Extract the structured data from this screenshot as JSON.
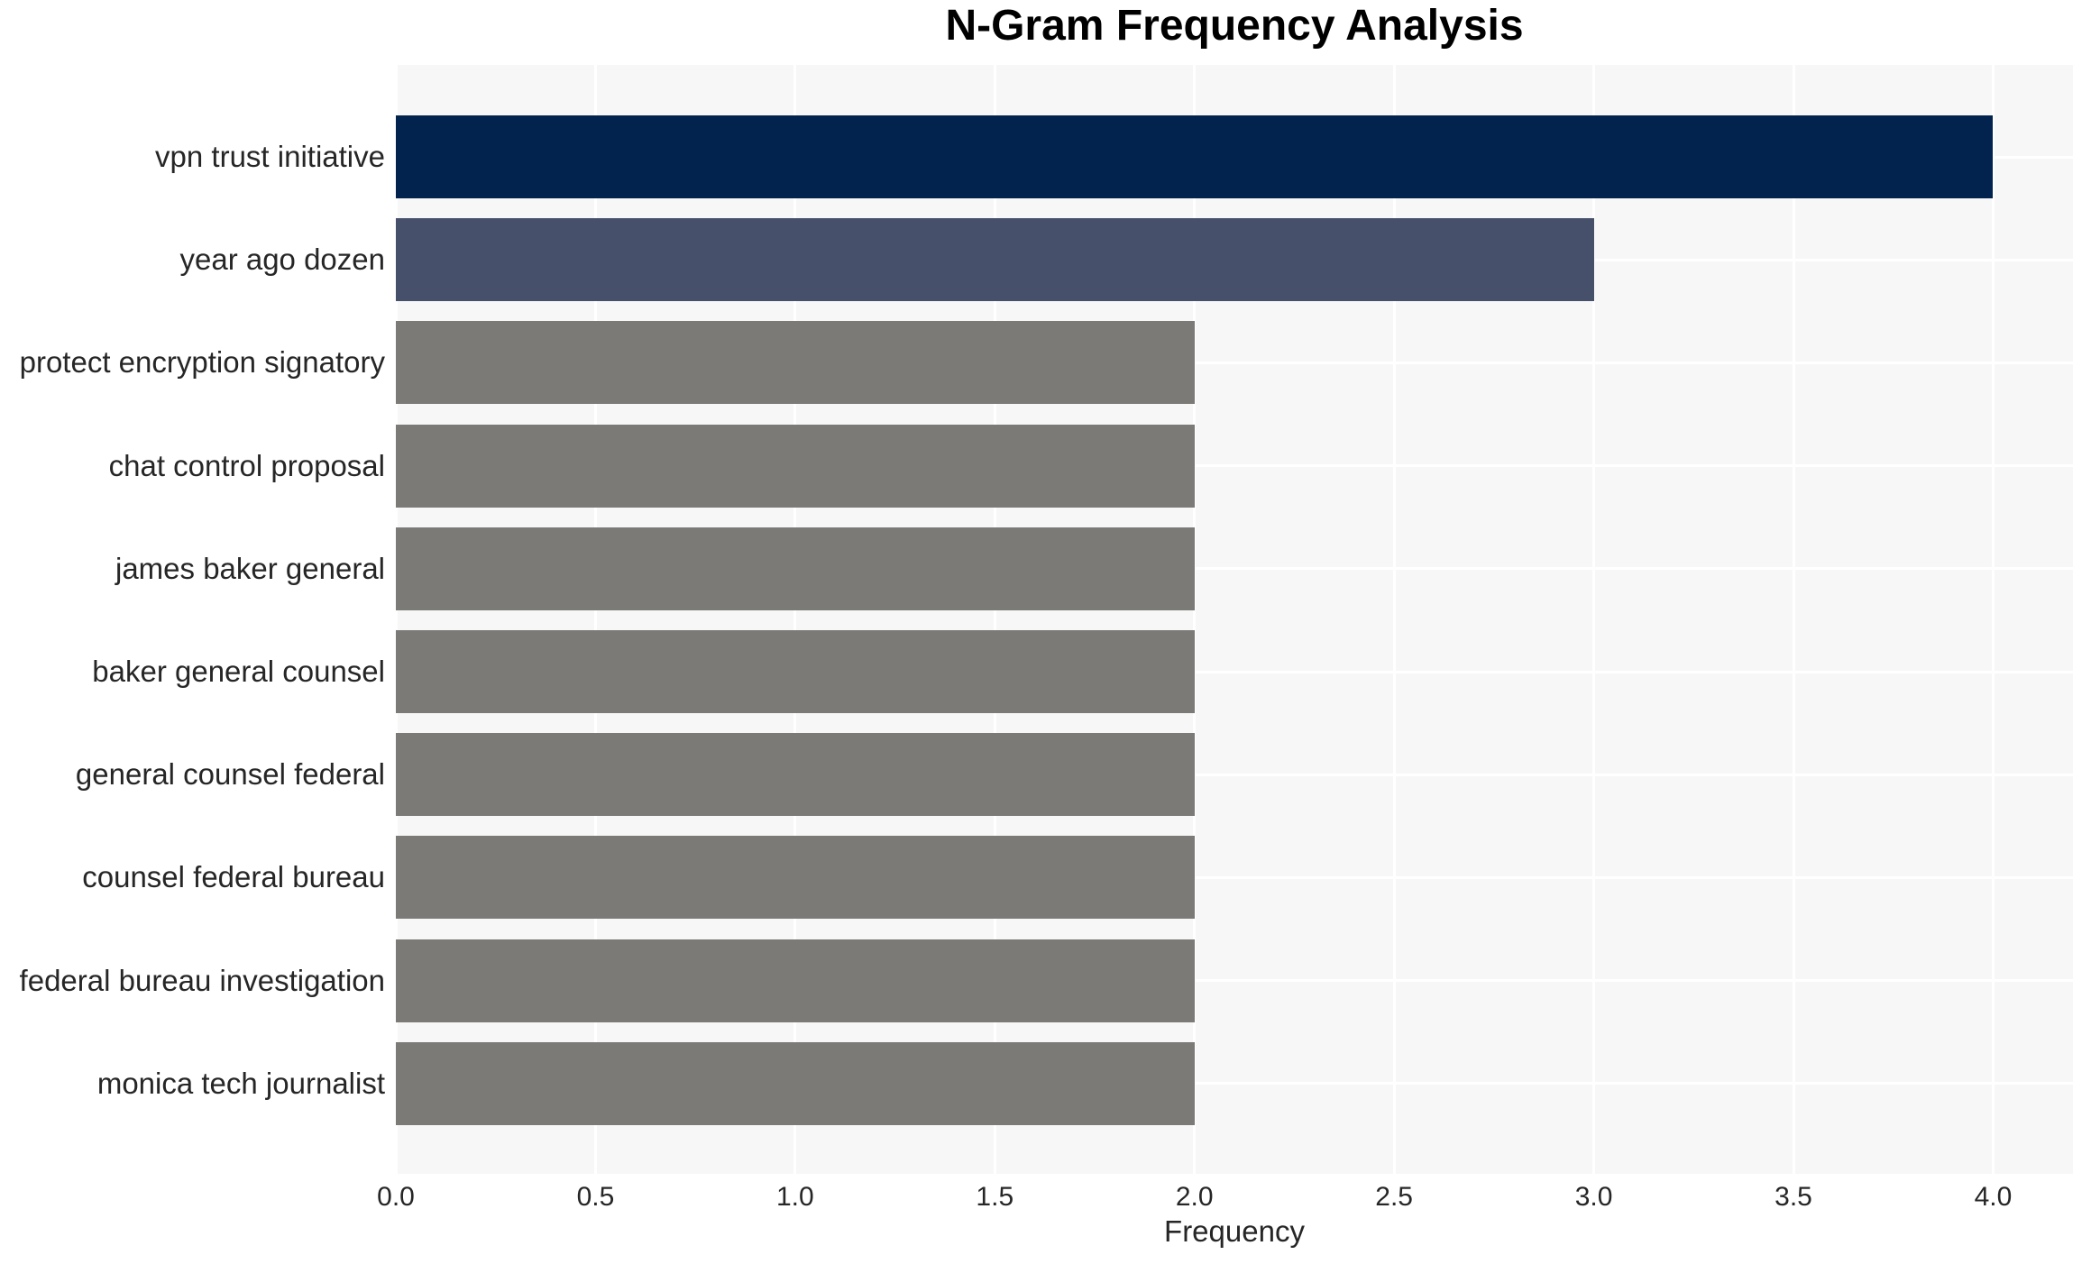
{
  "chart_data": {
    "type": "bar",
    "orientation": "horizontal",
    "title": "N-Gram Frequency Analysis",
    "xlabel": "Frequency",
    "ylabel": "",
    "categories": [
      "vpn trust initiative",
      "year ago dozen",
      "protect encryption signatory",
      "chat control proposal",
      "james baker general",
      "baker general counsel",
      "general counsel federal",
      "counsel federal bureau",
      "federal bureau investigation",
      "monica tech journalist"
    ],
    "values": [
      4,
      3,
      2,
      2,
      2,
      2,
      2,
      2,
      2,
      2
    ],
    "bar_colors": [
      "#02234d",
      "#46506b",
      "#7b7a77",
      "#7b7a77",
      "#7b7a77",
      "#7b7a77",
      "#7b7a77",
      "#7b7a77",
      "#7b7a77",
      "#7b7a77"
    ],
    "xlim": [
      0,
      4.2
    ],
    "xticks": [
      0.0,
      0.5,
      1.0,
      1.5,
      2.0,
      2.5,
      3.0,
      3.5,
      4.0
    ],
    "xtick_labels": [
      "0.0",
      "0.5",
      "1.0",
      "1.5",
      "2.0",
      "2.5",
      "3.0",
      "3.5",
      "4.0"
    ],
    "grid": "on",
    "legend": "none",
    "plot_bg": "#f7f7f7",
    "figure_bg": "#ffffff",
    "grid_color": "#ffffff",
    "text_color": "#262626",
    "title_color": "#000000"
  }
}
